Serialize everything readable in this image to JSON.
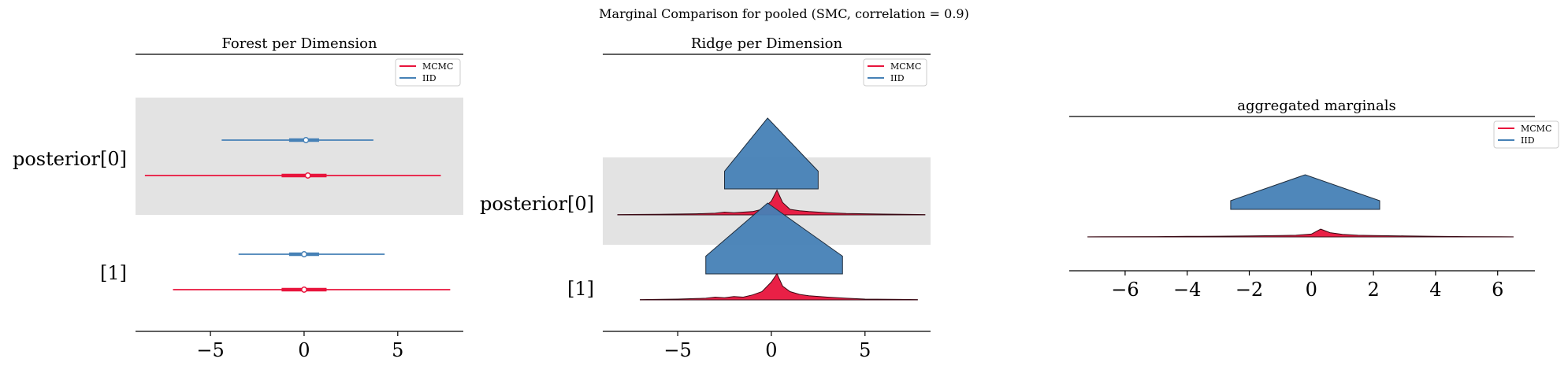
{
  "suptitle": "Marginal Comparison for pooled (SMC, correlation = 0.9)",
  "colors": {
    "mcmc": "#e8143c",
    "iid": "#4681b6",
    "band": "#e3e3e3",
    "axis": "#000000"
  },
  "legend": {
    "labels": [
      "MCMC",
      "IID"
    ]
  },
  "chart_data": [
    {
      "type": "forest",
      "title": "Forest per Dimension",
      "xlim": [
        -9,
        8.5
      ],
      "xticks": [
        -5,
        0,
        5
      ],
      "rows": [
        {
          "label": "posterior[0]",
          "series": [
            {
              "name": "IID",
              "hdi": [
                -4.4,
                3.7
              ],
              "iqr": [
                -0.8,
                0.8
              ],
              "median": 0.1
            },
            {
              "name": "MCMC",
              "hdi": [
                -8.5,
                7.3
              ],
              "iqr": [
                -1.2,
                1.2
              ],
              "median": 0.2
            }
          ]
        },
        {
          "label": "[1]",
          "series": [
            {
              "name": "IID",
              "hdi": [
                -3.5,
                4.3
              ],
              "iqr": [
                -0.8,
                0.8
              ],
              "median": 0.0
            },
            {
              "name": "MCMC",
              "hdi": [
                -7.0,
                7.8
              ],
              "iqr": [
                -1.2,
                1.2
              ],
              "median": 0.0
            }
          ]
        }
      ]
    },
    {
      "type": "ridge",
      "title": "Ridge per Dimension",
      "xlim": [
        -9,
        8.5
      ],
      "xticks": [
        -5,
        0,
        5
      ],
      "rows": [
        {
          "label": "posterior[0]",
          "iid": {
            "x": [
              -2.5,
              -0.2,
              2.5
            ],
            "y": [
              0.25,
              1.0,
              0.25
            ]
          },
          "mcmc": {
            "x": [
              -8.2,
              -6,
              -4,
              -3,
              -2.5,
              -2,
              -1.5,
              -1,
              -0.5,
              0,
              0.3,
              0.6,
              1,
              1.5,
              2,
              3,
              4,
              6,
              8.2
            ],
            "y": [
              0.01,
              0.02,
              0.04,
              0.06,
              0.1,
              0.08,
              0.1,
              0.12,
              0.2,
              0.5,
              0.9,
              0.45,
              0.2,
              0.15,
              0.12,
              0.08,
              0.05,
              0.03,
              0.01
            ]
          }
        },
        {
          "label": "[1]",
          "iid": {
            "x": [
              -3.5,
              -0.2,
              3.8
            ],
            "y": [
              0.25,
              1.0,
              0.25
            ]
          },
          "mcmc": {
            "x": [
              -7.0,
              -5,
              -4,
              -3.5,
              -3,
              -2.5,
              -2,
              -1.5,
              -1,
              -0.5,
              0,
              0.3,
              0.6,
              1,
              1.5,
              2,
              3,
              4,
              5,
              7.8
            ],
            "y": [
              0.01,
              0.03,
              0.05,
              0.06,
              0.1,
              0.08,
              0.12,
              0.1,
              0.18,
              0.3,
              0.65,
              0.95,
              0.5,
              0.3,
              0.2,
              0.15,
              0.1,
              0.06,
              0.03,
              0.01
            ]
          }
        }
      ]
    },
    {
      "type": "area",
      "title": "aggregated marginals",
      "xlim": [
        -7.8,
        7.2
      ],
      "xticks": [
        -6,
        -4,
        -2,
        0,
        2,
        4,
        6
      ],
      "series": [
        {
          "name": "IID",
          "x": [
            -2.6,
            -0.2,
            2.2
          ],
          "y": [
            0.25,
            1.0,
            0.25
          ]
        },
        {
          "name": "MCMC",
          "x": [
            -7.2,
            -5,
            -4,
            -3,
            -2,
            -1,
            -0.5,
            0,
            0.3,
            0.6,
            1,
            1.5,
            2,
            3,
            4,
            5,
            6.5
          ],
          "y": [
            0.01,
            0.02,
            0.04,
            0.05,
            0.07,
            0.1,
            0.12,
            0.2,
            0.55,
            0.3,
            0.18,
            0.12,
            0.1,
            0.07,
            0.04,
            0.02,
            0.01
          ]
        }
      ]
    }
  ]
}
